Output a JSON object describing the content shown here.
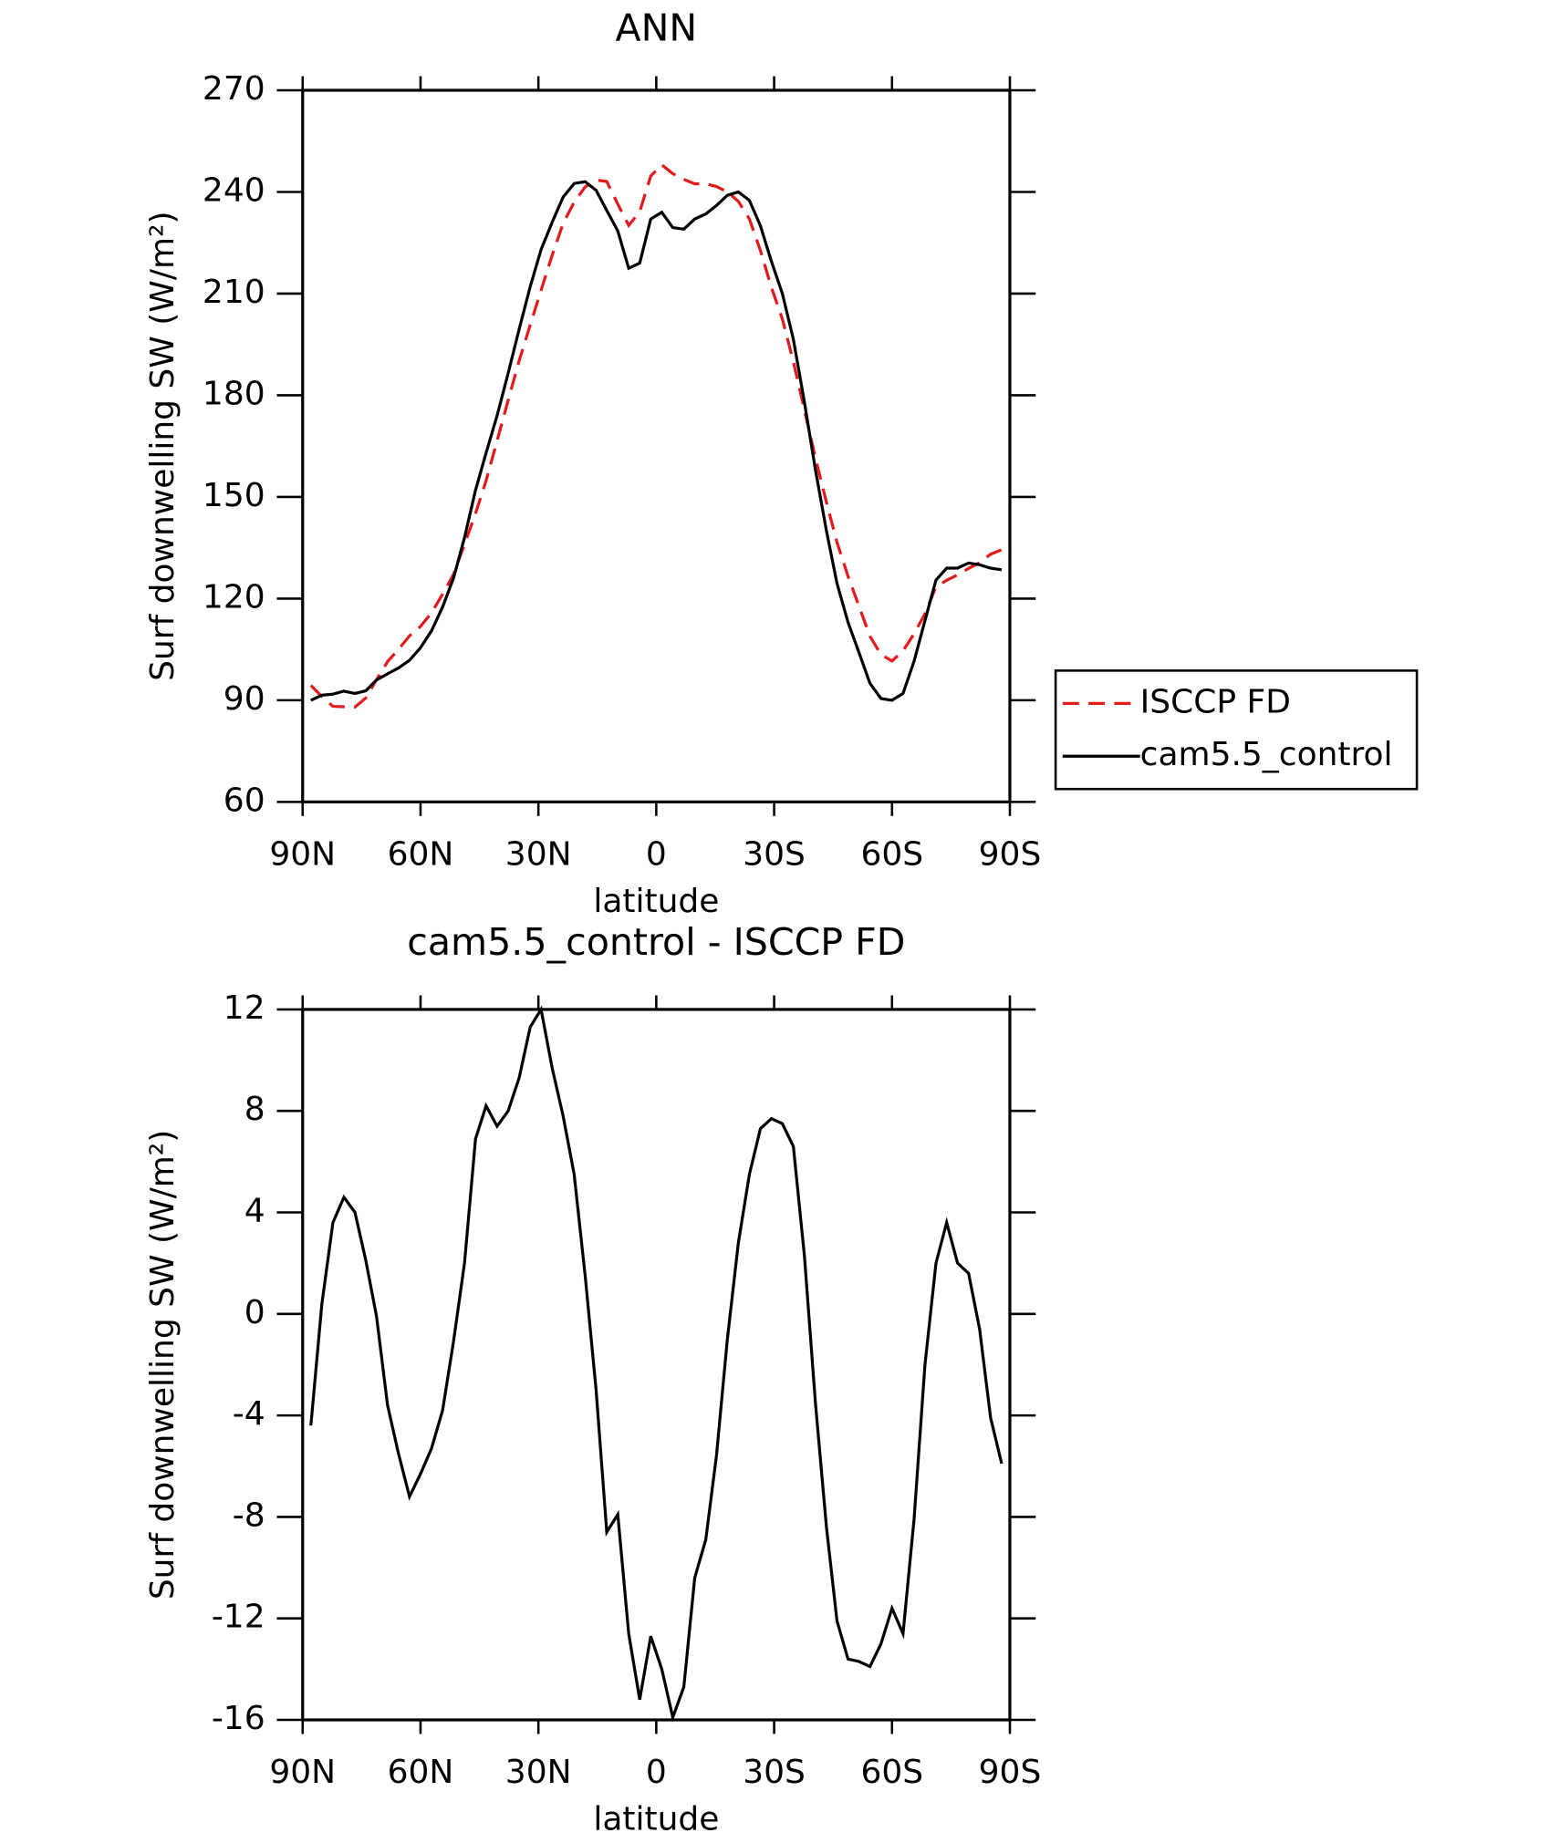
{
  "chart_data": [
    {
      "type": "line",
      "title": "ANN",
      "xlabel": "latitude",
      "ylabel": "Surf downwelling SW (W/m²)",
      "x": [
        87.9,
        85.1,
        82.3,
        79.5,
        76.7,
        73.9,
        71.2,
        68.4,
        65.6,
        62.8,
        60.0,
        57.2,
        54.4,
        51.6,
        48.8,
        46.0,
        43.3,
        40.5,
        37.7,
        34.9,
        32.1,
        29.3,
        26.5,
        23.7,
        20.9,
        18.1,
        15.3,
        12.6,
        9.8,
        7.0,
        4.2,
        1.4,
        -1.4,
        -4.2,
        -7.0,
        -9.8,
        -12.6,
        -15.3,
        -18.1,
        -20.9,
        -23.7,
        -26.5,
        -29.3,
        -32.1,
        -34.9,
        -37.7,
        -40.5,
        -43.3,
        -46.0,
        -48.8,
        -51.6,
        -54.4,
        -57.2,
        -60.0,
        -62.8,
        -65.6,
        -68.4,
        -71.2,
        -73.9,
        -76.7,
        -79.5,
        -82.3,
        -85.1,
        -87.9
      ],
      "series": [
        {
          "name": "ISCCP FD",
          "color": "#e41a1c",
          "dash": true,
          "values": [
            94.4,
            91.1,
            88.2,
            88.1,
            88,
            90.7,
            96.1,
            101.4,
            105,
            109,
            111.8,
            115.8,
            121.3,
            127.1,
            136,
            145.1,
            154.8,
            166.6,
            178.5,
            190.2,
            200.7,
            211,
            221.3,
            230.7,
            237,
            241.5,
            243.5,
            243.1,
            236.4,
            230.1,
            234.2,
            244.7,
            248,
            245.4,
            243.7,
            242.4,
            242.4,
            241.6,
            240,
            237.2,
            232,
            222.7,
            211.8,
            202.5,
            189.9,
            175.7,
            161.5,
            148.4,
            136.6,
            126.6,
            117.7,
            108.9,
            103.5,
            101.6,
            104.6,
            109.6,
            115.5,
            123.5,
            125.4,
            127,
            128.9,
            130.6,
            133.1,
            134.4
          ]
        },
        {
          "name": "cam5.5_control",
          "color": "#000000",
          "dash": false,
          "values": [
            90,
            91.5,
            91.8,
            92.7,
            92,
            92.8,
            96,
            97.8,
            99.5,
            101.8,
            105.5,
            110.5,
            117.5,
            126,
            138,
            152,
            163,
            174,
            186.5,
            199.5,
            212,
            223,
            231,
            238.5,
            242.5,
            243,
            240.5,
            234.5,
            228.5,
            217.5,
            219,
            232,
            234,
            229.5,
            229,
            232,
            233.5,
            236,
            239,
            240,
            237.5,
            230,
            219.5,
            210,
            196.5,
            178,
            158,
            140,
            124.5,
            113,
            104,
            95,
            90.5,
            90,
            92,
            101.5,
            113.5,
            125.5,
            129,
            129,
            130.5,
            130,
            129,
            128.5
          ]
        }
      ],
      "xlim": [
        90,
        -90
      ],
      "xticks": [
        {
          "value": 90,
          "label": "90N"
        },
        {
          "value": 60,
          "label": "60N"
        },
        {
          "value": 30,
          "label": "30N"
        },
        0,
        {
          "value": -30,
          "label": "30S"
        },
        {
          "value": -60,
          "label": "60S"
        },
        {
          "value": -90,
          "label": "90S"
        }
      ],
      "ylim": [
        60,
        270
      ],
      "yticks": [
        60,
        90,
        120,
        150,
        180,
        210,
        240,
        270
      ],
      "legend": "right"
    },
    {
      "type": "line",
      "title": "cam5.5_control - ISCCP FD",
      "xlabel": "latitude",
      "ylabel": "Surf downwelling SW (W/m²)",
      "x": [
        87.9,
        85.1,
        82.3,
        79.5,
        76.7,
        73.9,
        71.2,
        68.4,
        65.6,
        62.8,
        60.0,
        57.2,
        54.4,
        51.6,
        48.8,
        46.0,
        43.3,
        40.5,
        37.7,
        34.9,
        32.1,
        29.3,
        26.5,
        23.7,
        20.9,
        18.1,
        15.3,
        12.6,
        9.8,
        7.0,
        4.2,
        1.4,
        -1.4,
        -4.2,
        -7.0,
        -9.8,
        -12.6,
        -15.3,
        -18.1,
        -20.9,
        -23.7,
        -26.5,
        -29.3,
        -32.1,
        -34.9,
        -37.7,
        -40.5,
        -43.3,
        -46.0,
        -48.8,
        -51.6,
        -54.4,
        -57.2,
        -60.0,
        -62.8,
        -65.6,
        -68.4,
        -71.2,
        -73.9,
        -76.7,
        -79.5,
        -82.3,
        -85.1,
        -87.9
      ],
      "series": [
        {
          "color": "#000000",
          "dash": false,
          "values": [
            -4.4,
            0.4,
            3.6,
            4.6,
            4.0,
            2.1,
            -0.1,
            -3.6,
            -5.5,
            -7.2,
            -6.3,
            -5.3,
            -3.8,
            -1.1,
            2.0,
            6.9,
            8.2,
            7.4,
            8.0,
            9.3,
            11.3,
            12.0,
            9.7,
            7.8,
            5.5,
            1.5,
            -3.0,
            -8.6,
            -7.9,
            -12.6,
            -15.2,
            -12.7,
            -14.0,
            -15.9,
            -14.7,
            -10.4,
            -8.9,
            -5.6,
            -1.0,
            2.8,
            5.5,
            7.3,
            7.7,
            7.5,
            6.6,
            2.3,
            -3.5,
            -8.4,
            -12.1,
            -13.6,
            -13.7,
            -13.9,
            -13.0,
            -11.6,
            -12.6,
            -8.1,
            -2.0,
            2.0,
            3.6,
            2.0,
            1.6,
            -0.6,
            -4.1,
            -5.9
          ]
        }
      ],
      "xlim": [
        90,
        -90
      ],
      "xticks": [
        {
          "value": 90,
          "label": "90N"
        },
        {
          "value": 60,
          "label": "60N"
        },
        {
          "value": 30,
          "label": "30N"
        },
        0,
        {
          "value": -30,
          "label": "30S"
        },
        {
          "value": -60,
          "label": "60S"
        },
        {
          "value": -90,
          "label": "90S"
        }
      ],
      "ylim": [
        -16,
        12
      ],
      "yticks": [
        -16,
        -12,
        -8,
        -4,
        0,
        4,
        8,
        12
      ]
    }
  ]
}
